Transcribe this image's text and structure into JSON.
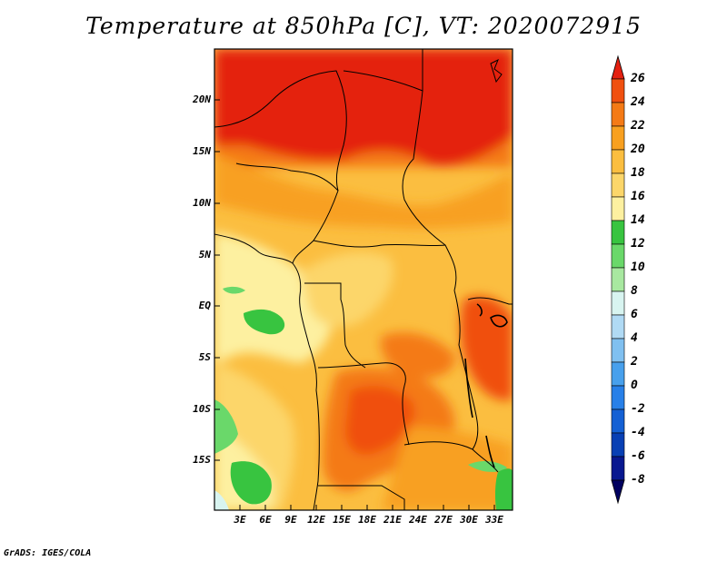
{
  "title": "Temperature at 850hPa [C], VT: 2020072915",
  "credit": "GrADS: IGES/COLA",
  "lat_labels": [
    "20N",
    "15N",
    "10N",
    "5N",
    "EQ",
    "5S",
    "10S",
    "15S"
  ],
  "lon_labels": [
    "3E",
    "6E",
    "9E",
    "12E",
    "15E",
    "18E",
    "21E",
    "24E",
    "27E",
    "30E",
    "33E"
  ],
  "colorbar": {
    "labels": [
      "26",
      "24",
      "22",
      "20",
      "18",
      "16",
      "14",
      "12",
      "10",
      "8",
      "6",
      "4",
      "2",
      "0",
      "-2",
      "-4",
      "-6",
      "-8"
    ],
    "colors": [
      "#e42010",
      "#f05010",
      "#f47a16",
      "#f8a020",
      "#fbbe40",
      "#fcd66a",
      "#fdf0a0",
      "#38c440",
      "#6ad86a",
      "#a8e8a0",
      "#d8f4f0",
      "#b0daf4",
      "#80c0f0",
      "#48a0ec",
      "#2880e8",
      "#1460d4",
      "#0840b4",
      "#081890",
      "#000060"
    ]
  }
}
